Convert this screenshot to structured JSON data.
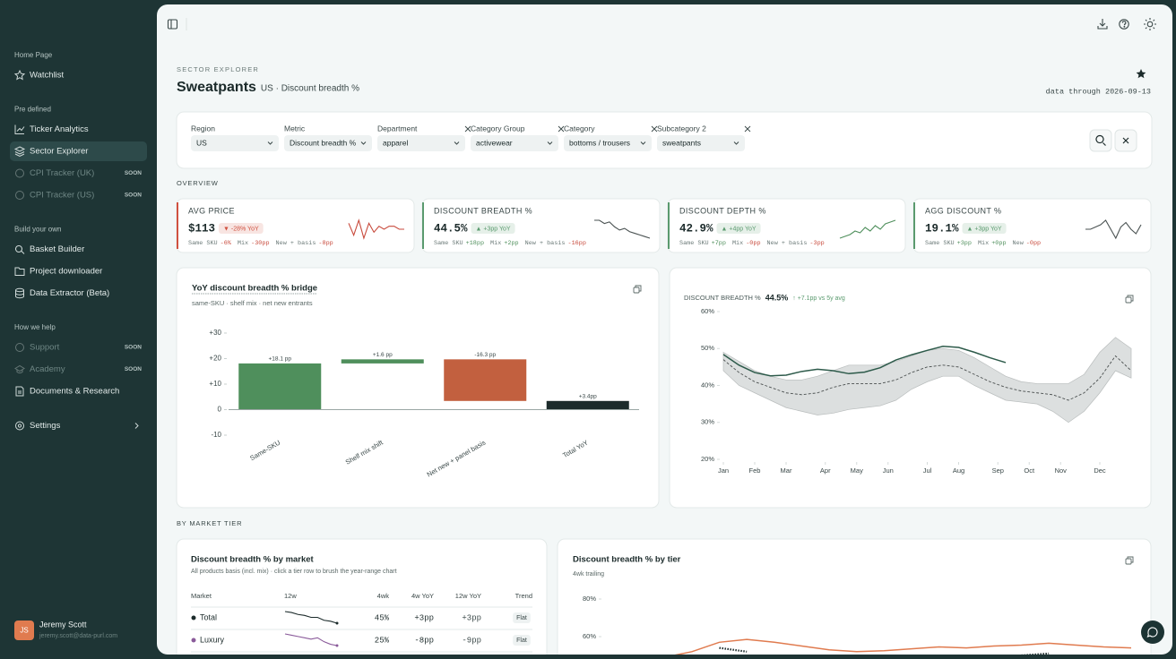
{
  "sidebar": {
    "sections": [
      {
        "heading": "Home Page",
        "items": [
          {
            "label": "Watchlist"
          }
        ]
      },
      {
        "heading": "Pre defined",
        "items": [
          {
            "label": "Ticker Analytics"
          },
          {
            "label": "Sector Explorer",
            "active": true
          },
          {
            "label": "CPI Tracker (UK)",
            "badge": "SOON"
          },
          {
            "label": "CPI Tracker (US)",
            "badge": "SOON"
          }
        ]
      },
      {
        "heading": "Build your own",
        "items": [
          {
            "label": "Basket Builder"
          },
          {
            "label": "Project downloader"
          },
          {
            "label": "Data Extractor (Beta)"
          }
        ]
      },
      {
        "heading": "How we help",
        "items": [
          {
            "label": "Support",
            "badge": "SOON"
          },
          {
            "label": "Academy",
            "badge": "SOON"
          },
          {
            "label": "Documents & Research"
          }
        ]
      }
    ],
    "settings": "Settings",
    "user": {
      "initials": "JS",
      "name": "Jeremy Scott",
      "email": "jeremy.scott@data-purl.com"
    }
  },
  "header": {
    "eyebrow": "SECTOR EXPLORER",
    "title": "Sweatpants",
    "subtitle": "US · Discount breadth %",
    "data_through": "data through 2026-09-13"
  },
  "filters": [
    {
      "label": "Region",
      "value": "US"
    },
    {
      "label": "Metric",
      "value": "Discount breadth %"
    },
    {
      "label": "Department",
      "value": "apparel",
      "clearable": true
    },
    {
      "label": "Category Group",
      "value": "activewear",
      "clearable": true
    },
    {
      "label": "Category",
      "value": "bottoms / trousers",
      "clearable": true
    },
    {
      "label": "Subcategory 2",
      "value": "sweatpants",
      "clearable": true
    }
  ],
  "overview": {
    "heading": "OVERVIEW",
    "kpis": [
      {
        "title": "AVG PRICE",
        "value": "$113",
        "change": "▼ -28% YoY",
        "accent": "#d0503f",
        "spark_color": "#c84a3c",
        "breakdown": [
          {
            "label": "Same SKU",
            "value": "-6%"
          },
          {
            "label": "Mix",
            "value": "-30pp"
          },
          {
            "label": "New + basis",
            "value": "-8pp"
          }
        ],
        "spark": [
          9,
          5,
          10,
          4,
          9,
          6,
          8,
          7,
          8,
          8,
          7,
          7
        ]
      },
      {
        "title": "DISCOUNT BREADTH %",
        "value": "44.5%",
        "change": "▲ +3pp YoY",
        "accent": "#5a9a6e",
        "spark_color": "#4a5252",
        "breakdown": [
          {
            "label": "Same SKU",
            "value": "+18pp"
          },
          {
            "label": "Mix",
            "value": "+2pp"
          },
          {
            "label": "New + basis",
            "value": "-16pp"
          }
        ],
        "spark": [
          8,
          8,
          7,
          7.5,
          6,
          5,
          5.5,
          4.5,
          4,
          3.5,
          3,
          2.5
        ]
      },
      {
        "title": "DISCOUNT DEPTH %",
        "value": "42.9%",
        "change": "▲ +4pp YoY",
        "accent": "#5a9a6e",
        "spark_color": "#4f8f5c",
        "breakdown": [
          {
            "label": "Same SKU",
            "value": "+7pp"
          },
          {
            "label": "Mix",
            "value": "-0pp"
          },
          {
            "label": "New + basis",
            "value": "-3pp"
          }
        ],
        "spark": [
          3,
          3.5,
          4,
          5,
          4.5,
          6,
          5,
          6.5,
          5.5,
          7,
          7.5,
          8
        ]
      },
      {
        "title": "AGG DISCOUNT %",
        "value": "19.1%",
        "change": "▲ +3pp YoY",
        "accent": "#5a9a6e",
        "spark_color": "#4a5252",
        "breakdown": [
          {
            "label": "Same SKU",
            "value": "+3pp"
          },
          {
            "label": "Mix",
            "value": "+0pp"
          },
          {
            "label": "New",
            "value": "-0pp"
          }
        ],
        "spark": [
          5,
          5,
          5.5,
          6,
          7,
          5,
          3,
          5.5,
          6.5,
          5,
          4,
          6
        ]
      }
    ]
  },
  "chart_data": [
    {
      "type": "waterfall",
      "title": "YoY discount breadth % bridge",
      "subtitle": "same-SKU · shelf mix · net new entrants",
      "categories": [
        "Same-SKU",
        "Shelf mix shift",
        "Net new + panel basis",
        "Total YoY"
      ],
      "values": [
        18.1,
        1.6,
        -16.3,
        3.4
      ],
      "value_labels": [
        "+18.1 pp",
        "+1.6 pp",
        "-16.3 pp",
        "+3.4pp"
      ],
      "measure": [
        "relative",
        "relative",
        "relative",
        "total"
      ],
      "colors": [
        "#4f8f5c",
        "#4f8f5c",
        "#c2603f",
        "#1c2b2b"
      ],
      "ylim": [
        -12,
        34
      ],
      "yticks": [
        {
          "value": 30,
          "label": "+30"
        },
        {
          "value": 20,
          "label": "+20"
        },
        {
          "value": 10,
          "label": "+10"
        },
        0,
        -10
      ]
    },
    {
      "type": "line",
      "title": "DISCOUNT BREADTH %",
      "headline": "44.5%",
      "annotation": "↑ +7.1pp vs 5y avg",
      "x": [
        1,
        3,
        5,
        7,
        9,
        11,
        13,
        15,
        17,
        19,
        21,
        23,
        25,
        27,
        29,
        31,
        33,
        35,
        37,
        39,
        41,
        43,
        45,
        47,
        49,
        51,
        53
      ],
      "xlim": [
        1,
        53
      ],
      "xticks": [
        {
          "value": 1,
          "label": "Jan"
        },
        {
          "value": 5,
          "label": "Feb"
        },
        {
          "value": 9,
          "label": "Mar"
        },
        {
          "value": 14,
          "label": "Apr"
        },
        {
          "value": 18,
          "label": "May"
        },
        {
          "value": 22,
          "label": "Jun"
        },
        {
          "value": 27,
          "label": "Jul"
        },
        {
          "value": 31,
          "label": "Aug"
        },
        {
          "value": 36,
          "label": "Sep"
        },
        {
          "value": 40,
          "label": "Oct"
        },
        {
          "value": 44,
          "label": "Nov"
        },
        {
          "value": 49,
          "label": "Dec"
        }
      ],
      "ylim": [
        20,
        60
      ],
      "yticks": [
        {
          "value": 60,
          "label": "60%"
        },
        {
          "value": 50,
          "label": "50%"
        },
        {
          "value": 40,
          "label": "40%"
        },
        {
          "value": 30,
          "label": "30%"
        },
        {
          "value": 20,
          "label": "20%"
        }
      ],
      "band": {
        "color": "#dcdfdf",
        "low": [
          44,
          40,
          38,
          36,
          34,
          33,
          32,
          32.5,
          33.5,
          34,
          34.5,
          36,
          39,
          41,
          42.5,
          42.5,
          40,
          38,
          36,
          35.5,
          35,
          33,
          30,
          33,
          38,
          44,
          42
        ],
        "high": [
          49,
          46.5,
          44,
          42.5,
          41.5,
          41.5,
          42.5,
          44,
          45.5,
          45.5,
          45.5,
          46.5,
          48,
          49.5,
          50,
          49.5,
          47.5,
          45,
          42.5,
          41,
          40.5,
          40.5,
          40.5,
          43,
          49,
          53,
          50
        ]
      },
      "series": [
        {
          "color": "#4a4f4f",
          "dash": true,
          "values": [
            47,
            43.5,
            41,
            39.5,
            38,
            37.5,
            38,
            39.5,
            40.5,
            40.5,
            40.5,
            41.5,
            43.5,
            45,
            45.5,
            45,
            43,
            41,
            39.5,
            38.5,
            38,
            37.5,
            36,
            38,
            42,
            48,
            44
          ]
        },
        {
          "color": "#2d5a4a",
          "values": [
            48.4,
            45.5,
            43.5,
            42.6,
            42.8,
            43.8,
            44.4,
            44.0,
            43.2,
            43.6,
            44.8,
            46.9,
            48.3,
            49.5,
            50.6,
            50.3,
            49.0,
            47.5,
            46.2,
            null,
            null,
            null,
            null,
            null,
            null,
            null,
            null
          ]
        }
      ]
    },
    {
      "type": "line",
      "title": "Discount breadth % by tier",
      "subtitle": "4wk trailing",
      "x": [
        1,
        2,
        3,
        4,
        5,
        6,
        7,
        8,
        9,
        10,
        11,
        12,
        13,
        14,
        15,
        16,
        17,
        18,
        19,
        20
      ],
      "xlim": [
        1,
        20
      ],
      "ylim": [
        40,
        85
      ],
      "yticks": [
        {
          "value": 80,
          "label": "80%"
        },
        {
          "value": 60,
          "label": "60%"
        }
      ],
      "series": [
        {
          "color": "#e07b4f",
          "values": [
            null,
            null,
            49,
            52,
            57,
            58.5,
            57,
            55,
            53,
            52,
            52.5,
            53.5,
            54.5,
            54,
            55,
            55.5,
            56.5,
            55.5,
            54.5,
            54
          ]
        },
        {
          "color": "#1c2b2b",
          "dotted": true,
          "values": [
            null,
            null,
            null,
            null,
            54,
            52,
            null,
            null,
            null,
            null,
            null,
            null,
            null,
            null,
            null,
            50,
            51,
            null,
            null,
            null
          ]
        }
      ]
    }
  ],
  "market_tier": {
    "heading": "BY MARKET TIER",
    "table": {
      "title": "Discount breadth % by market",
      "subtitle": "All products basis (incl. mix) · click a tier row to brush the year-range chart",
      "columns": [
        "Market",
        "12w",
        "4wk",
        "4w YoY",
        "12w YoY",
        "Trend"
      ],
      "rows": [
        {
          "market": "Total",
          "color": "#1c2b2b",
          "spark": [
            8,
            7.5,
            6.5,
            6,
            5,
            5,
            3.5,
            3,
            2
          ],
          "w4": "45%",
          "w4_yoy": "+3pp",
          "w12_yoy": "+3pp",
          "trend": "Flat"
        },
        {
          "market": "Luxury",
          "color": "#8a5a9a",
          "spark": [
            7,
            6.5,
            6,
            5.5,
            5,
            5.5,
            4,
            3,
            2.5
          ],
          "w4": "25%",
          "w4_yoy": "-8pp",
          "w12_yoy": "-9pp",
          "trend": "Flat"
        }
      ]
    }
  }
}
